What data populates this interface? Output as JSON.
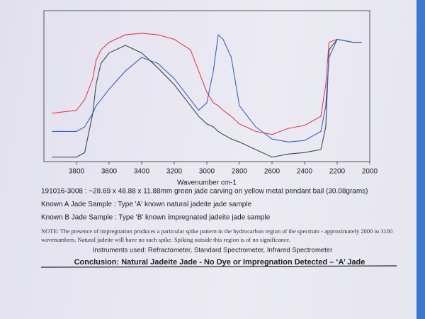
{
  "chart_data": {
    "type": "line",
    "xlabel": "Wavenumber cm-1",
    "x": [
      3950,
      3800,
      3750,
      3700,
      3680,
      3650,
      3600,
      3500,
      3400,
      3300,
      3200,
      3100,
      3050,
      3000,
      2960,
      2930,
      2900,
      2850,
      2800,
      2700,
      2600,
      2500,
      2400,
      2300,
      2270,
      2250,
      2200,
      2100,
      2050
    ],
    "xlim": [
      4000,
      2000
    ],
    "xticks": [
      3800,
      3600,
      3400,
      3200,
      3000,
      2800,
      2600,
      2400,
      2200,
      2000
    ],
    "ylim": [
      0,
      100
    ],
    "series": [
      {
        "name": "191016-3008 : ~28.69 x 48.88 x 11.88mm green jade carving on yellow metal pendant bail (30.08grams)",
        "color": "#e2404f",
        "values": [
          32,
          34,
          41,
          55,
          67,
          74,
          79,
          84,
          85,
          84,
          81,
          74,
          60,
          46,
          39,
          37,
          34,
          30,
          25,
          20,
          18,
          22,
          24,
          30,
          51,
          79,
          81,
          79,
          79
        ]
      },
      {
        "name": "Known A Jade Sample : Type 'A' known natural jadeite jade sample",
        "color": "#3c4a48",
        "values": [
          3,
          3,
          6,
          32,
          51,
          65,
          72,
          77,
          72,
          62,
          51,
          37,
          30,
          25,
          23,
          20,
          18,
          15,
          13,
          8,
          3,
          5,
          6,
          8,
          23,
          74,
          81,
          79,
          79
        ]
      },
      {
        "name": "Known B Jade Sample : Type 'B' known impregnated jadeite jade sample",
        "color": "#3a62c0",
        "values": [
          20,
          20,
          23,
          32,
          37,
          41,
          48,
          60,
          69,
          65,
          55,
          41,
          34,
          39,
          60,
          84,
          81,
          69,
          37,
          23,
          15,
          13,
          14,
          20,
          37,
          69,
          81,
          79,
          79
        ]
      }
    ]
  },
  "document": {
    "note": "NOTE: The presence of impregnation produces a particular spike pattern in the hydrocarbon region of the spectrum - approximately 2800 to 3100 wavenumbers. Natural jadeite will have no such spike. Spiking outside this region is of no significance.",
    "instruments": "Instruments used: Refractometer, Standard Spectrometer, Infrared Spectrometer",
    "conclusion": "Conclusion: Natural Jadeite Jade - No Dye or Impregnation Detected – ‘A’ Jade"
  }
}
